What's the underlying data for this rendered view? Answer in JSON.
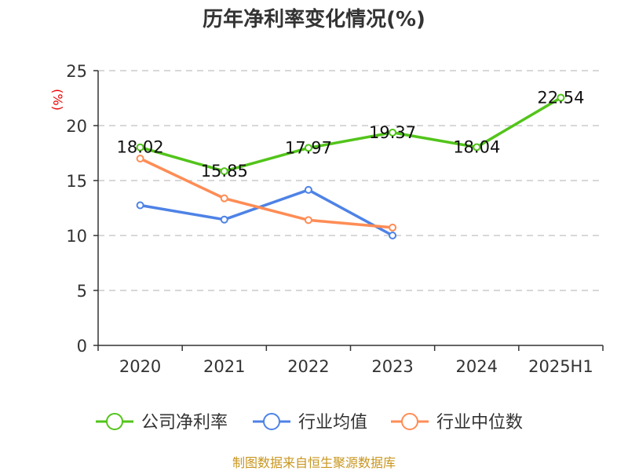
{
  "chart_data": {
    "type": "line",
    "title": "历年净利率变化情况(%)",
    "ylabel": "(%)",
    "categories": [
      "2020",
      "2021",
      "2022",
      "2023",
      "2024",
      "2025H1"
    ],
    "ylim": [
      0,
      25
    ],
    "yticks": [
      0,
      5,
      10,
      15,
      20,
      25
    ],
    "grid": true,
    "legend_position": "bottom",
    "series": [
      {
        "name": "公司净利率",
        "color": "#52c41a",
        "values": [
          18.02,
          15.85,
          17.97,
          19.37,
          18.04,
          22.54
        ],
        "labels": [
          "18.02",
          "15.85",
          "17.97",
          "19.37",
          "18.04",
          "22.54"
        ]
      },
      {
        "name": "行业均值",
        "color": "#4e82e6",
        "values": [
          12.75,
          11.45,
          14.15,
          10.0,
          null,
          null
        ]
      },
      {
        "name": "行业中位数",
        "color": "#ff8c55",
        "values": [
          17.0,
          13.38,
          11.4,
          10.72,
          null,
          null
        ]
      }
    ]
  },
  "source": "制图数据来自恒生聚源数据库"
}
